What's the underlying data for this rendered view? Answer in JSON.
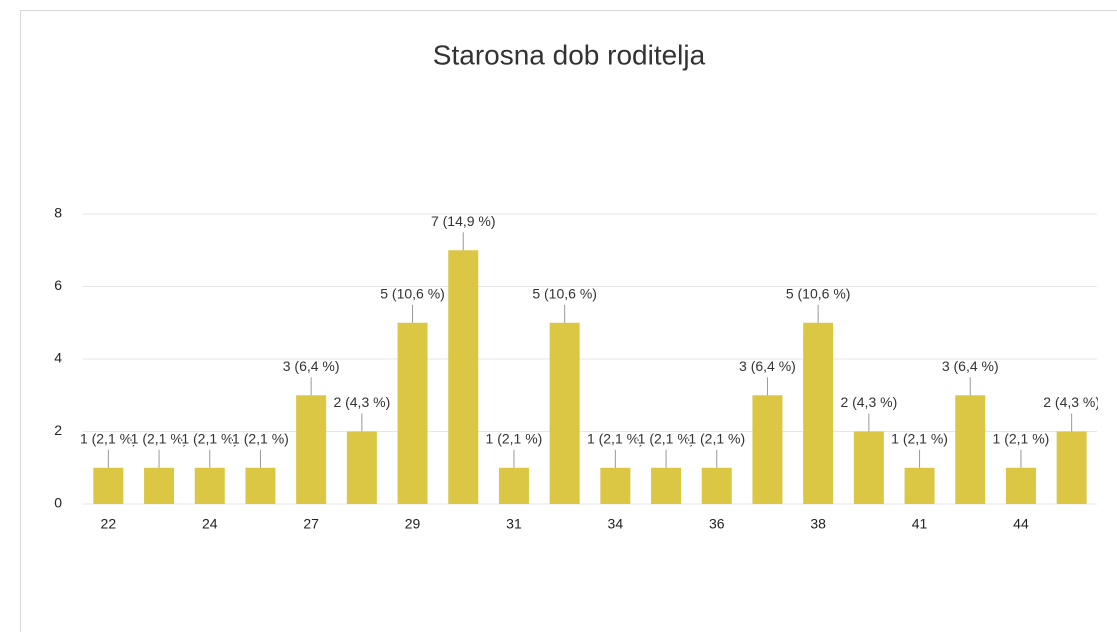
{
  "chart_data": {
    "type": "bar",
    "title": "Starosna dob roditelja",
    "categories": [
      "22",
      null,
      "24",
      null,
      "27",
      null,
      "29",
      null,
      "31",
      null,
      "34",
      null,
      "36",
      null,
      "38",
      null,
      "41",
      null,
      "44",
      null
    ],
    "values": [
      1,
      1,
      1,
      1,
      3,
      2,
      5,
      7,
      1,
      5,
      1,
      1,
      1,
      3,
      5,
      2,
      1,
      3,
      1,
      2
    ],
    "value_labels": [
      "1 (2,1 %)",
      "1 (2,1 %)",
      "1 (2,1 %)",
      "1 (2,1 %)",
      "3 (6,4 %)",
      "2 (4,3 %)",
      "5 (10,6 %)",
      "7 (14,9 %)",
      "1 (2,1 %)",
      "5 (10,6 %)",
      "1 (2,1 %)",
      "1 (2,1 %)",
      "1 (2,1 %)",
      "3 (6,4 %)",
      "5 (10,6 %)",
      "2 (4,3 %)",
      "1 (2,1 %)",
      "3 (6,4 %)",
      "1 (2,1 %)",
      "2 (4,3 %)"
    ],
    "color": "#dbc743",
    "ylim": [
      0,
      8
    ],
    "yticks": [
      0,
      2,
      4,
      6,
      8
    ],
    "grid": true
  }
}
